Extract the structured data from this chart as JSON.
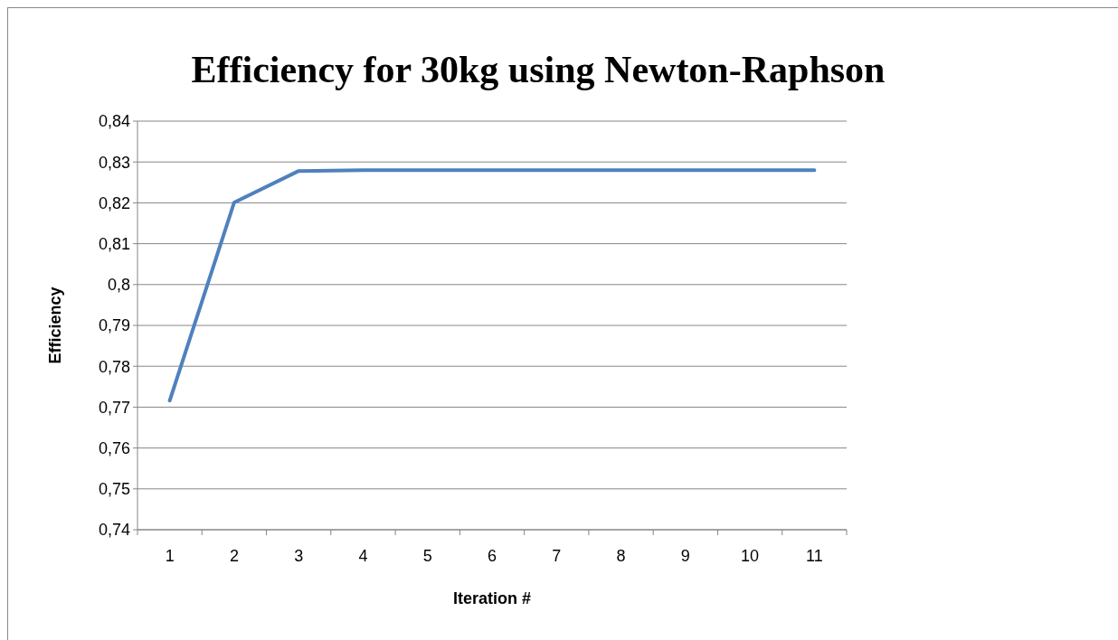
{
  "chart_data": {
    "type": "line",
    "title": "Efficiency for 30kg using Newton-Raphson",
    "xlabel": "Iteration #",
    "ylabel": "Efficiency",
    "categories": [
      "1",
      "2",
      "3",
      "4",
      "5",
      "6",
      "7",
      "8",
      "9",
      "10",
      "11"
    ],
    "series": [
      {
        "color": "#4f81bd",
        "values": [
          0.7716,
          0.8201,
          0.8278,
          0.828,
          0.828,
          0.828,
          0.828,
          0.828,
          0.828,
          0.828,
          0.828
        ]
      }
    ],
    "ylim": [
      0.74,
      0.84
    ],
    "yticks": [
      {
        "value": 0.74,
        "label": "0,74"
      },
      {
        "value": 0.75,
        "label": "0,75"
      },
      {
        "value": 0.76,
        "label": "0,76"
      },
      {
        "value": 0.77,
        "label": "0,77"
      },
      {
        "value": 0.78,
        "label": "0,78"
      },
      {
        "value": 0.79,
        "label": "0,79"
      },
      {
        "value": 0.8,
        "label": "0,8"
      },
      {
        "value": 0.81,
        "label": "0,81"
      },
      {
        "value": 0.82,
        "label": "0,82"
      },
      {
        "value": 0.83,
        "label": "0,83"
      },
      {
        "value": 0.84,
        "label": "0,84"
      }
    ],
    "grid": "y",
    "marker": "none",
    "line_style": "solid"
  }
}
